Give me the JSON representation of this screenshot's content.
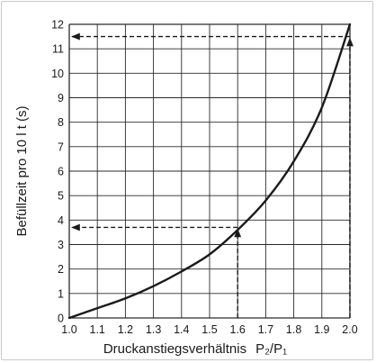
{
  "chart_data": {
    "type": "line",
    "xlabel_main": "Druckanstiegsverhältnis",
    "xlabel_ratio": "P₂/P₁",
    "ylabel": "Befüllzeit pro 10 l  t (s)",
    "xlim": [
      1.0,
      2.0
    ],
    "ylim": [
      0,
      12
    ],
    "grid": true,
    "x_ticks": [
      "1.0",
      "1.1",
      "1.2",
      "1.3",
      "1.4",
      "1.5",
      "1.6",
      "1.7",
      "1.8",
      "1.9",
      "2.0"
    ],
    "y_ticks": [
      "0",
      "1",
      "2",
      "3",
      "4",
      "5",
      "6",
      "7",
      "8",
      "9",
      "10",
      "11",
      "12"
    ],
    "series": [
      {
        "x": [
          1.0,
          1.1,
          1.2,
          1.3,
          1.4,
          1.5,
          1.6,
          1.7,
          1.8,
          1.9,
          2.0
        ],
        "y": [
          0.0,
          0.4,
          0.8,
          1.3,
          1.9,
          2.6,
          3.6,
          4.8,
          6.4,
          8.6,
          12.0
        ]
      }
    ],
    "annotations": [
      {
        "x": 1.6,
        "y": 3.7
      },
      {
        "x": 2.0,
        "y": 11.5
      }
    ],
    "colors": {
      "curve": "#1a1a1a",
      "grid": "#2a2a2a",
      "frame": "#c9c9c9"
    }
  }
}
